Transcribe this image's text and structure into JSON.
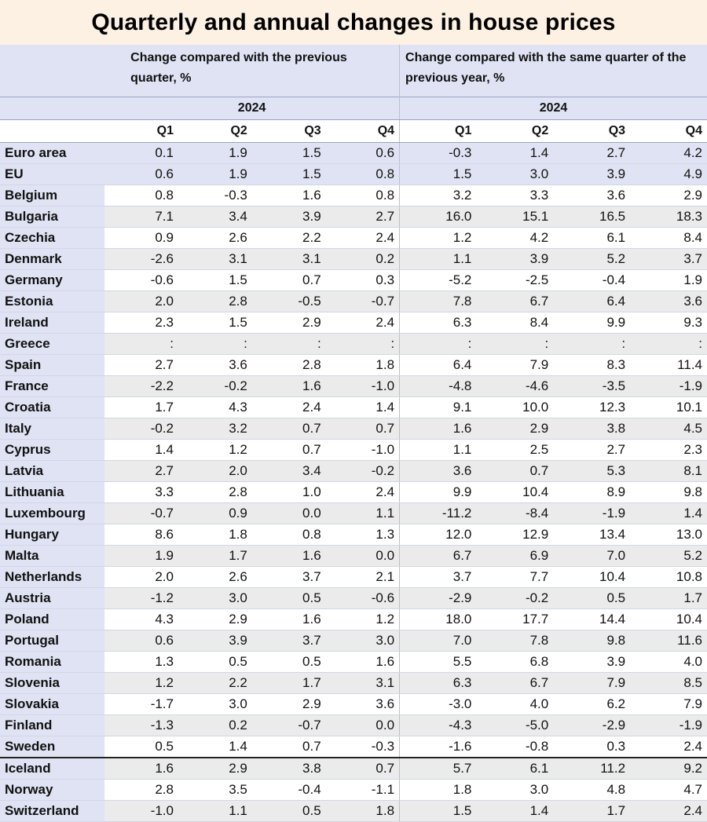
{
  "title": "Quarterly and annual changes in house prices",
  "chart_data": {
    "type": "table",
    "title": "Quarterly and annual changes in house prices",
    "groups": [
      {
        "label": "Change compared with the previous quarter, %",
        "year": "2024",
        "quarters": [
          "Q1",
          "Q2",
          "Q3",
          "Q4"
        ]
      },
      {
        "label": "Change compared with the same quarter of the previous year, %",
        "year": "2024",
        "quarters": [
          "Q1",
          "Q2",
          "Q3",
          "Q4"
        ]
      }
    ],
    "rows": [
      {
        "country": "Euro area",
        "aggregate": true,
        "qoq": [
          "0.1",
          "1.9",
          "1.5",
          "0.6"
        ],
        "yoy": [
          "-0.3",
          "1.4",
          "2.7",
          "4.2"
        ]
      },
      {
        "country": "EU",
        "aggregate": true,
        "qoq": [
          "0.6",
          "1.9",
          "1.5",
          "0.8"
        ],
        "yoy": [
          "1.5",
          "3.0",
          "3.9",
          "4.9"
        ]
      },
      {
        "country": "Belgium",
        "qoq": [
          "0.8",
          "-0.3",
          "1.6",
          "0.8"
        ],
        "yoy": [
          "3.2",
          "3.3",
          "3.6",
          "2.9"
        ]
      },
      {
        "country": "Bulgaria",
        "qoq": [
          "7.1",
          "3.4",
          "3.9",
          "2.7"
        ],
        "yoy": [
          "16.0",
          "15.1",
          "16.5",
          "18.3"
        ]
      },
      {
        "country": "Czechia",
        "qoq": [
          "0.9",
          "2.6",
          "2.2",
          "2.4"
        ],
        "yoy": [
          "1.2",
          "4.2",
          "6.1",
          "8.4"
        ]
      },
      {
        "country": "Denmark",
        "qoq": [
          "-2.6",
          "3.1",
          "3.1",
          "0.2"
        ],
        "yoy": [
          "1.1",
          "3.9",
          "5.2",
          "3.7"
        ]
      },
      {
        "country": "Germany",
        "qoq": [
          "-0.6",
          "1.5",
          "0.7",
          "0.3"
        ],
        "yoy": [
          "-5.2",
          "-2.5",
          "-0.4",
          "1.9"
        ]
      },
      {
        "country": "Estonia",
        "qoq": [
          "2.0",
          "2.8",
          "-0.5",
          "-0.7"
        ],
        "yoy": [
          "7.8",
          "6.7",
          "6.4",
          "3.6"
        ]
      },
      {
        "country": "Ireland",
        "qoq": [
          "2.3",
          "1.5",
          "2.9",
          "2.4"
        ],
        "yoy": [
          "6.3",
          "8.4",
          "9.9",
          "9.3"
        ]
      },
      {
        "country": "Greece",
        "qoq": [
          ":",
          ":",
          ":",
          ":"
        ],
        "yoy": [
          ":",
          ":",
          ":",
          ":"
        ]
      },
      {
        "country": "Spain",
        "qoq": [
          "2.7",
          "3.6",
          "2.8",
          "1.8"
        ],
        "yoy": [
          "6.4",
          "7.9",
          "8.3",
          "11.4"
        ]
      },
      {
        "country": "France",
        "qoq": [
          "-2.2",
          "-0.2",
          "1.6",
          "-1.0"
        ],
        "yoy": [
          "-4.8",
          "-4.6",
          "-3.5",
          "-1.9"
        ]
      },
      {
        "country": "Croatia",
        "qoq": [
          "1.7",
          "4.3",
          "2.4",
          "1.4"
        ],
        "yoy": [
          "9.1",
          "10.0",
          "12.3",
          "10.1"
        ]
      },
      {
        "country": "Italy",
        "qoq": [
          "-0.2",
          "3.2",
          "0.7",
          "0.7"
        ],
        "yoy": [
          "1.6",
          "2.9",
          "3.8",
          "4.5"
        ]
      },
      {
        "country": "Cyprus",
        "qoq": [
          "1.4",
          "1.2",
          "0.7",
          "-1.0"
        ],
        "yoy": [
          "1.1",
          "2.5",
          "2.7",
          "2.3"
        ]
      },
      {
        "country": "Latvia",
        "qoq": [
          "2.7",
          "2.0",
          "3.4",
          "-0.2"
        ],
        "yoy": [
          "3.6",
          "0.7",
          "5.3",
          "8.1"
        ]
      },
      {
        "country": "Lithuania",
        "qoq": [
          "3.3",
          "2.8",
          "1.0",
          "2.4"
        ],
        "yoy": [
          "9.9",
          "10.4",
          "8.9",
          "9.8"
        ]
      },
      {
        "country": "Luxembourg",
        "qoq": [
          "-0.7",
          "0.9",
          "0.0",
          "1.1"
        ],
        "yoy": [
          "-11.2",
          "-8.4",
          "-1.9",
          "1.4"
        ]
      },
      {
        "country": "Hungary",
        "qoq": [
          "8.6",
          "1.8",
          "0.8",
          "1.3"
        ],
        "yoy": [
          "12.0",
          "12.9",
          "13.4",
          "13.0"
        ]
      },
      {
        "country": "Malta",
        "qoq": [
          "1.9",
          "1.7",
          "1.6",
          "0.0"
        ],
        "yoy": [
          "6.7",
          "6.9",
          "7.0",
          "5.2"
        ]
      },
      {
        "country": "Netherlands",
        "qoq": [
          "2.0",
          "2.6",
          "3.7",
          "2.1"
        ],
        "yoy": [
          "3.7",
          "7.7",
          "10.4",
          "10.8"
        ]
      },
      {
        "country": "Austria",
        "qoq": [
          "-1.2",
          "3.0",
          "0.5",
          "-0.6"
        ],
        "yoy": [
          "-2.9",
          "-0.2",
          "0.5",
          "1.7"
        ]
      },
      {
        "country": "Poland",
        "qoq": [
          "4.3",
          "2.9",
          "1.6",
          "1.2"
        ],
        "yoy": [
          "18.0",
          "17.7",
          "14.4",
          "10.4"
        ]
      },
      {
        "country": "Portugal",
        "qoq": [
          "0.6",
          "3.9",
          "3.7",
          "3.0"
        ],
        "yoy": [
          "7.0",
          "7.8",
          "9.8",
          "11.6"
        ]
      },
      {
        "country": "Romania",
        "qoq": [
          "1.3",
          "0.5",
          "0.5",
          "1.6"
        ],
        "yoy": [
          "5.5",
          "6.8",
          "3.9",
          "4.0"
        ]
      },
      {
        "country": "Slovenia",
        "qoq": [
          "1.2",
          "2.2",
          "1.7",
          "3.1"
        ],
        "yoy": [
          "6.3",
          "6.7",
          "7.9",
          "8.5"
        ]
      },
      {
        "country": "Slovakia",
        "qoq": [
          "-1.7",
          "3.0",
          "2.9",
          "3.6"
        ],
        "yoy": [
          "-3.0",
          "4.0",
          "6.2",
          "7.9"
        ]
      },
      {
        "country": "Finland",
        "qoq": [
          "-1.3",
          "0.2",
          "-0.7",
          "0.0"
        ],
        "yoy": [
          "-4.3",
          "-5.0",
          "-2.9",
          "-1.9"
        ]
      },
      {
        "country": "Sweden",
        "qoq": [
          "0.5",
          "1.4",
          "0.7",
          "-0.3"
        ],
        "yoy": [
          "-1.6",
          "-0.8",
          "0.3",
          "2.4"
        ]
      },
      {
        "country": "Iceland",
        "separator": true,
        "qoq": [
          "1.6",
          "2.9",
          "3.8",
          "0.7"
        ],
        "yoy": [
          "5.7",
          "6.1",
          "11.2",
          "9.2"
        ]
      },
      {
        "country": "Norway",
        "qoq": [
          "2.8",
          "3.5",
          "-0.4",
          "-1.1"
        ],
        "yoy": [
          "1.8",
          "3.0",
          "4.8",
          "4.7"
        ]
      },
      {
        "country": "Switzerland",
        "qoq": [
          "-1.0",
          "1.1",
          "0.5",
          "1.8"
        ],
        "yoy": [
          "1.5",
          "1.4",
          "1.7",
          "2.4"
        ]
      }
    ]
  }
}
